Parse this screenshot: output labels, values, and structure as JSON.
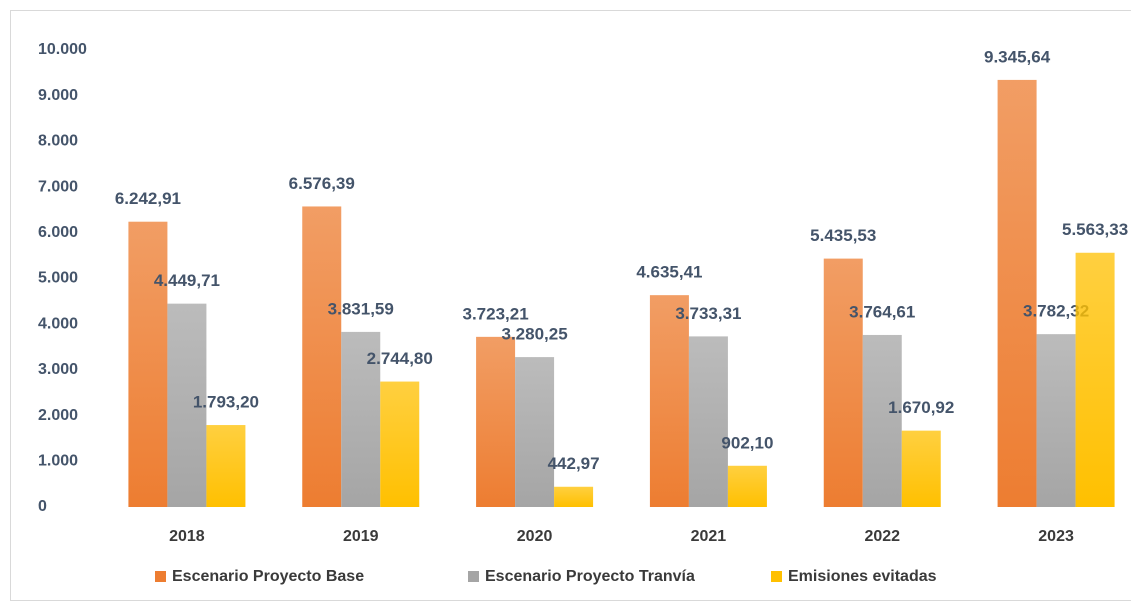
{
  "chart_data": {
    "type": "bar",
    "categories": [
      "2018",
      "2019",
      "2020",
      "2021",
      "2022",
      "2023"
    ],
    "series": [
      {
        "name": "Escenario Proyecto Base",
        "color": "#ed7d31",
        "values": [
          6242.91,
          6576.39,
          3723.21,
          4635.41,
          5435.53,
          9345.64
        ],
        "value_labels": [
          "6.242,91",
          "6.576,39",
          "3.723,21",
          "4.635,41",
          "5.435,53",
          "9.345,64"
        ]
      },
      {
        "name": "Escenario Proyecto Tranvía",
        "color": "#a5a5a5",
        "values": [
          4449.71,
          3831.59,
          3280.25,
          3733.31,
          3764.61,
          3782.32
        ],
        "value_labels": [
          "4.449,71",
          "3.831,59",
          "3.280,25",
          "3.733,31",
          "3.764,61",
          "3.782,32"
        ]
      },
      {
        "name": "Emisiones evitadas",
        "color": "#ffc000",
        "values": [
          1793.2,
          2744.8,
          442.97,
          902.1,
          1670.92,
          5563.33
        ],
        "value_labels": [
          "1.793,20",
          "2.744,80",
          "442,97",
          "902,10",
          "1.670,92",
          "5.563,33"
        ]
      }
    ],
    "ylim": [
      0,
      10000
    ],
    "yticks": [
      0,
      {
        "value": 1000,
        "label": "1.000"
      },
      {
        "value": 2000,
        "label": "2.000"
      },
      {
        "value": 3000,
        "label": "3.000"
      },
      {
        "value": 4000,
        "label": "4.000"
      },
      {
        "value": 5000,
        "label": "5.000"
      },
      {
        "value": 6000,
        "label": "6.000"
      },
      {
        "value": 7000,
        "label": "7.000"
      },
      {
        "value": 8000,
        "label": "8.000"
      },
      {
        "value": 9000,
        "label": "9.000"
      },
      {
        "value": 10000,
        "label": "10.000"
      }
    ],
    "legend": "bottom"
  }
}
